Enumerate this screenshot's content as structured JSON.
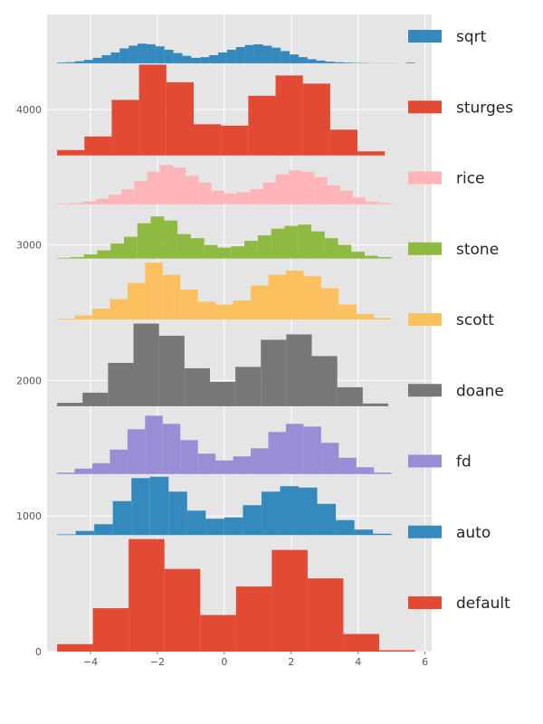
{
  "chart_data": {
    "type": "bar",
    "subtype": "stacked-offset-histograms",
    "title": "",
    "xlabel": "",
    "ylabel": "",
    "xlim": [
      -5.3,
      6.2
    ],
    "ylim": [
      0,
      4700
    ],
    "grid": true,
    "legend_position": "right",
    "xticks": [
      {
        "value": -4,
        "label": "−4"
      },
      {
        "value": -2,
        "label": "−2"
      },
      {
        "value": 0,
        "label": "0"
      },
      {
        "value": 2,
        "label": "2"
      },
      {
        "value": 4,
        "label": "4"
      },
      {
        "value": 6,
        "label": "6"
      }
    ],
    "yticks": [
      {
        "value": 0,
        "label": "0"
      },
      {
        "value": 1000,
        "label": "1000"
      },
      {
        "value": 2000,
        "label": "2000"
      },
      {
        "value": 3000,
        "label": "3000"
      },
      {
        "value": 4000,
        "label": "4000"
      }
    ],
    "series": [
      {
        "name": "default",
        "color": "#E24A33",
        "baseline": 0,
        "range": [
          -5.0,
          5.7
        ],
        "counts": [
          55,
          320,
          830,
          610,
          270,
          480,
          750,
          540,
          130,
          10
        ]
      },
      {
        "name": "auto",
        "color": "#348ABD",
        "baseline": 860,
        "range": [
          -5.0,
          5.0
        ],
        "counts": [
          5,
          30,
          80,
          250,
          420,
          430,
          320,
          180,
          120,
          130,
          220,
          320,
          360,
          350,
          230,
          110,
          40,
          10
        ]
      },
      {
        "name": "fd",
        "color": "#988ED5",
        "baseline": 1310,
        "range": [
          -5.0,
          5.0
        ],
        "counts": [
          10,
          40,
          80,
          180,
          330,
          430,
          370,
          250,
          150,
          100,
          130,
          190,
          310,
          370,
          350,
          230,
          120,
          50,
          10
        ]
      },
      {
        "name": "doane",
        "color": "#777777",
        "baseline": 1810,
        "range": [
          -5.0,
          4.9
        ],
        "counts": [
          25,
          100,
          320,
          610,
          520,
          280,
          180,
          290,
          490,
          530,
          370,
          140,
          20
        ]
      },
      {
        "name": "scott",
        "color": "#FBC15E",
        "baseline": 2450,
        "range": [
          -5.0,
          5.0
        ],
        "counts": [
          5,
          30,
          80,
          150,
          270,
          420,
          330,
          220,
          130,
          110,
          140,
          250,
          330,
          360,
          320,
          230,
          110,
          40,
          10
        ]
      },
      {
        "name": "stone",
        "color": "#8EBA42",
        "baseline": 2900,
        "range": [
          -5.0,
          5.0
        ],
        "counts": [
          5,
          10,
          30,
          60,
          110,
          160,
          260,
          310,
          280,
          180,
          150,
          100,
          80,
          90,
          130,
          170,
          220,
          240,
          250,
          200,
          150,
          100,
          50,
          20,
          10
        ]
      },
      {
        "name": "rice",
        "color": "#FFB5B8",
        "baseline": 3300,
        "range": [
          -5.0,
          5.0
        ],
        "counts": [
          5,
          10,
          20,
          40,
          70,
          110,
          170,
          240,
          290,
          270,
          210,
          160,
          100,
          80,
          90,
          110,
          160,
          220,
          250,
          240,
          200,
          140,
          100,
          50,
          20,
          10
        ]
      },
      {
        "name": "sturges",
        "color": "#E24A33",
        "baseline": 3660,
        "range": [
          -5.0,
          4.8
        ],
        "counts": [
          40,
          140,
          410,
          670,
          540,
          230,
          220,
          440,
          590,
          530,
          190,
          30
        ]
      },
      {
        "name": "sqrt",
        "color": "#348ABD",
        "baseline": 4340,
        "range": [
          -5.0,
          5.7
        ],
        "counts": [
          5,
          8,
          15,
          25,
          40,
          60,
          80,
          110,
          130,
          145,
          140,
          125,
          100,
          75,
          55,
          40,
          45,
          60,
          80,
          100,
          120,
          135,
          140,
          130,
          115,
          90,
          65,
          45,
          30,
          20,
          12,
          8,
          5,
          3,
          2,
          1,
          1,
          1,
          0,
          5
        ]
      }
    ]
  }
}
